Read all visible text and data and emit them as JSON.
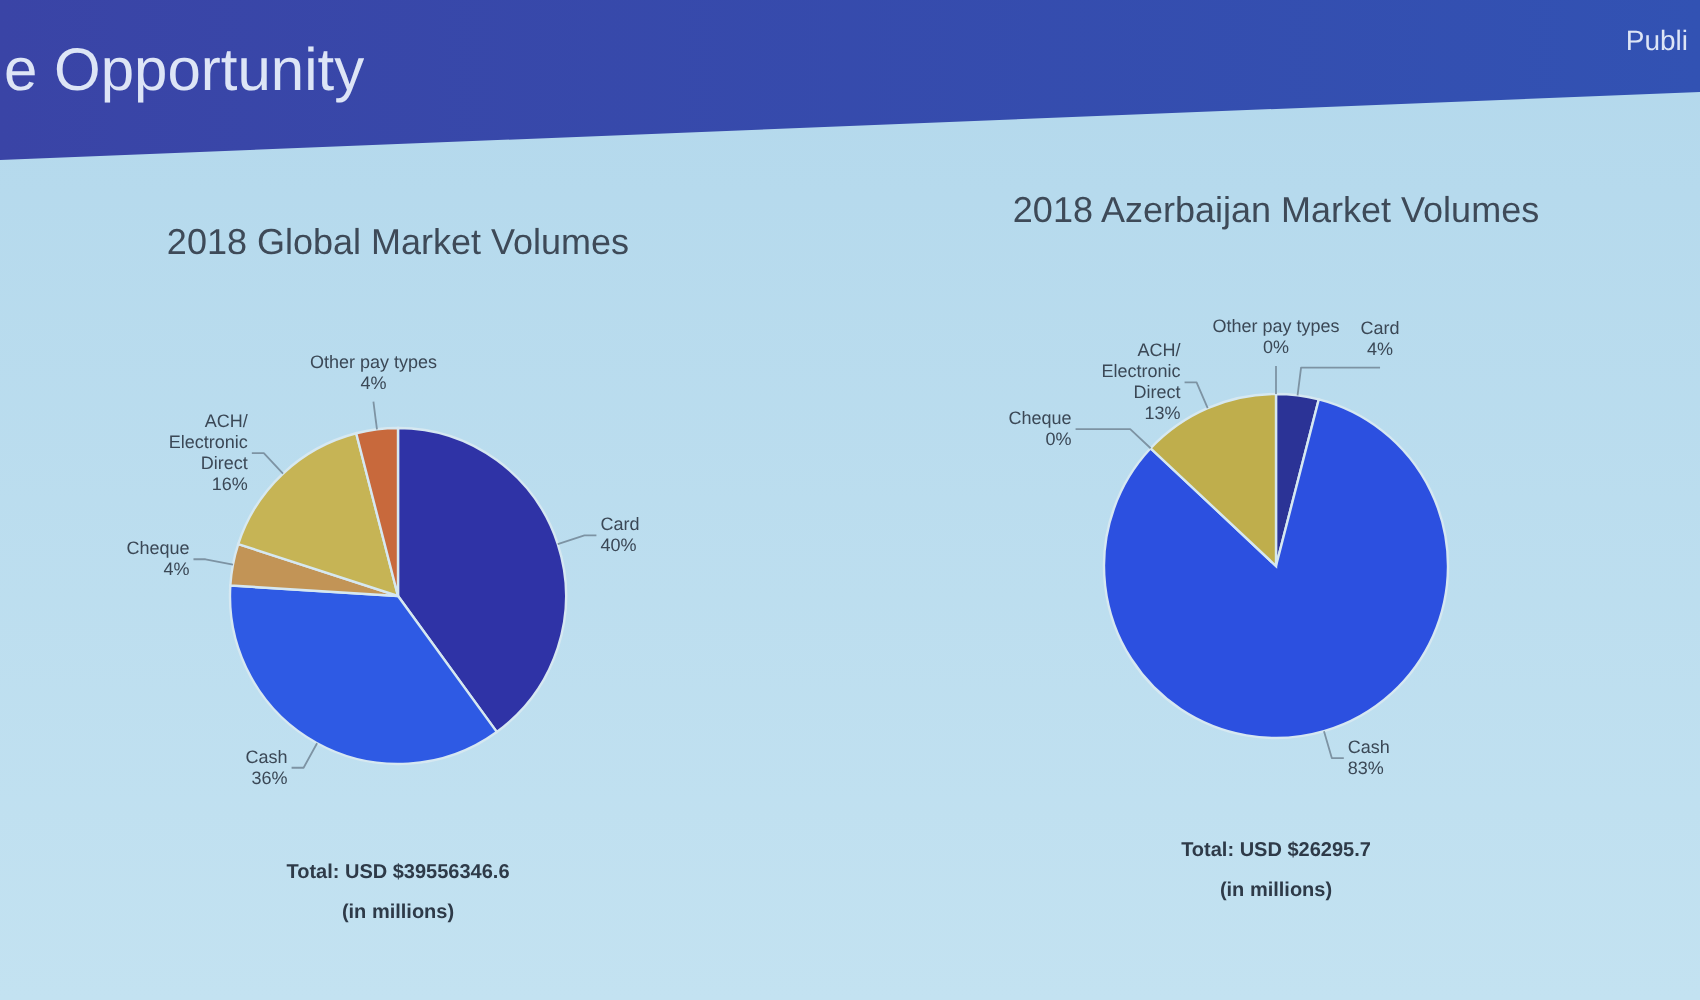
{
  "chart_data": [
    {
      "type": "other",
      "title": "e Opportunity",
      "annotations": [
        "Publi"
      ]
    },
    {
      "type": "pie",
      "title": "2018 Global Market Volumes",
      "categories": [
        "Card",
        "Cash",
        "Cheque",
        "ACH/\nElectronic\nDirect",
        "Other pay types"
      ],
      "values": [
        40,
        36,
        4,
        16,
        4
      ],
      "value_labels": [
        "40%",
        "36%",
        "4%",
        "16%",
        "4%"
      ],
      "colors": [
        "#2f33a6",
        "#2e5ae4",
        "#c29456",
        "#c6b455",
        "#c8693c"
      ],
      "annotations": [
        "Total: USD $39556346.6",
        "(in millions)"
      ]
    },
    {
      "type": "pie",
      "title": "2018 Azerbaijan Market Volumes",
      "categories": [
        "Card",
        "Cash",
        "Cheque",
        "ACH/\nElectronic\nDirect",
        "Other pay types"
      ],
      "values": [
        4,
        83,
        0,
        13,
        0
      ],
      "value_labels": [
        "4%",
        "83%",
        "0%",
        "13%",
        "0%"
      ],
      "colors": [
        "#2b3396",
        "#2c50e0",
        "#c29456",
        "#bfae4c",
        "#c8693c"
      ],
      "annotations": [
        "Total: USD $26295.7",
        "(in millions)"
      ]
    }
  ]
}
